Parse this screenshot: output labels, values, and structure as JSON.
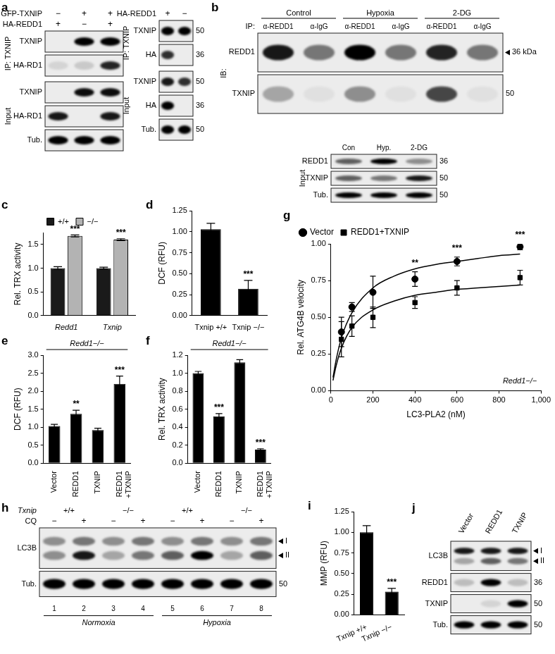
{
  "chart_data": [
    {
      "panel": "c",
      "type": "bar",
      "y_label": "Rel. TRX activity",
      "categories": [
        "Redd1",
        "Txnip"
      ],
      "ylim": [
        0,
        1.75
      ],
      "yticks": [
        {
          "value": 0,
          "label": "0.0"
        },
        0.5,
        {
          "value": 1,
          "label": "1.0"
        },
        1.5
      ],
      "grid": false,
      "legend": "top",
      "series": [
        {
          "name": "+/+",
          "color": "#1a1a1a",
          "values": [
            1.0,
            1.0
          ],
          "errors": [
            0.03,
            0.02
          ]
        },
        {
          "name": "−/−",
          "color": "#b3b3b3",
          "values": [
            1.68,
            1.6
          ],
          "errors": [
            0.02,
            0.02
          ],
          "stars": [
            "***",
            "***"
          ]
        }
      ]
    },
    {
      "panel": "d",
      "type": "bar",
      "y_label": "DCF (RFU)",
      "categories": [
        "Txnip +/+",
        "Txnip −/−"
      ],
      "values": [
        1.03,
        0.32
      ],
      "errors": [
        0.07,
        0.1
      ],
      "stars": [
        null,
        "***"
      ],
      "color": "#000000",
      "ylim": [
        0,
        1.25
      ],
      "yticks": [
        {
          "value": 0,
          "label": "0.00"
        },
        0.25,
        {
          "value": 0.5,
          "label": "0.50"
        },
        0.75,
        {
          "value": 1,
          "label": "1.00"
        },
        1.25
      ],
      "grid": false
    },
    {
      "panel": "g",
      "type": "scatter",
      "x_label": "LC3-PLA2 (nM)",
      "y_label": "Rel. ATG4B velocity",
      "x": [
        50,
        100,
        200,
        400,
        600,
        900
      ],
      "xlim": [
        0,
        1000
      ],
      "xticks": [
        0,
        200,
        400,
        600,
        800,
        {
          "value": 1000,
          "label": "1,000"
        }
      ],
      "ylim": [
        0,
        1.0
      ],
      "yticks": [
        {
          "value": 0,
          "label": "0.00"
        },
        0.25,
        {
          "value": 0.5,
          "label": "0.50"
        },
        0.75,
        {
          "value": 1,
          "label": "1.00"
        }
      ],
      "grid": false,
      "legend": "top-left",
      "note": "Redd1−/−",
      "series": [
        {
          "name": "Vector",
          "color": "#000000",
          "marker": "circle",
          "values": [
            0.4,
            0.57,
            0.67,
            0.76,
            0.88,
            0.98
          ],
          "errors": [
            0.1,
            0.03,
            0.11,
            0.05,
            0.03,
            0.02
          ],
          "stars": [
            null,
            null,
            null,
            "**",
            "***",
            "***"
          ],
          "fit": {
            "x": [
              10,
              25,
              50,
              100,
              200,
              300,
              400,
              500,
              600,
              700,
              800,
              900
            ],
            "values": [
              0.09,
              0.21,
              0.36,
              0.53,
              0.7,
              0.78,
              0.83,
              0.86,
              0.88,
              0.9,
              0.92,
              0.93
            ]
          }
        },
        {
          "name": "REDD1+TXNIP",
          "color": "#000000",
          "marker": "square",
          "values": [
            0.35,
            0.44,
            0.5,
            0.6,
            0.7,
            0.77
          ],
          "errors": [
            0.12,
            0.07,
            0.07,
            0.04,
            0.05,
            0.05
          ],
          "fit": {
            "x": [
              10,
              25,
              50,
              100,
              200,
              300,
              400,
              500,
              600,
              700,
              800,
              900
            ],
            "values": [
              0.07,
              0.17,
              0.29,
              0.43,
              0.55,
              0.61,
              0.65,
              0.67,
              0.69,
              0.7,
              0.71,
              0.72
            ]
          }
        }
      ]
    },
    {
      "panel": "e",
      "type": "bar",
      "y_label": "DCF (RFU)",
      "note": "Redd1−/−",
      "categories": [
        "Vector",
        "REDD1",
        "TXNIP",
        [
          "REDD1",
          "+TXNIP"
        ]
      ],
      "values": [
        1.03,
        1.37,
        0.92,
        2.2
      ],
      "errors": [
        0.05,
        0.1,
        0.05,
        0.22
      ],
      "stars": [
        null,
        "**",
        null,
        "***"
      ],
      "color": "#000000",
      "ylim": [
        0,
        3.0
      ],
      "yticks": [
        {
          "value": 0,
          "label": "0.0"
        },
        0.5,
        {
          "value": 1,
          "label": "1.0"
        },
        1.5,
        {
          "value": 2,
          "label": "2.0"
        },
        2.5,
        {
          "value": 3,
          "label": "3.0"
        }
      ],
      "grid": false
    },
    {
      "panel": "f",
      "type": "bar",
      "y_label": "Rel. TRX activity",
      "note": "Redd1−/−",
      "categories": [
        "Vector",
        "REDD1",
        "TXNIP",
        [
          "REDD1",
          "+TXNIP"
        ]
      ],
      "values": [
        1.0,
        0.52,
        1.12,
        0.15
      ],
      "errors": [
        0.02,
        0.03,
        0.03,
        0.01
      ],
      "stars": [
        null,
        "***",
        null,
        "***"
      ],
      "color": "#000000",
      "ylim": [
        0,
        1.2
      ],
      "yticks": [
        {
          "value": 0,
          "label": "0.0"
        },
        0.2,
        0.4,
        0.6,
        0.8,
        {
          "value": 1,
          "label": "1.0"
        },
        1.2
      ],
      "grid": false
    },
    {
      "panel": "i",
      "type": "bar",
      "y_label": "MMP (RFU)",
      "categories": [
        "Txnip +/+",
        "Txnip −/−"
      ],
      "values": [
        1.0,
        0.28
      ],
      "errors": [
        0.08,
        0.04
      ],
      "stars": [
        null,
        "***"
      ],
      "color": "#000000",
      "ylim": [
        0,
        1.25
      ],
      "yticks": [
        {
          "value": 0,
          "label": "0.00"
        },
        0.25,
        {
          "value": 0.5,
          "label": "0.50"
        },
        0.75,
        {
          "value": 1,
          "label": "1.00"
        },
        1.25
      ],
      "grid": false
    }
  ],
  "blots": [
    {
      "panel": "a",
      "headers": [
        {
          "label": "GFP-TXNIP",
          "values": [
            "−",
            "+",
            "+"
          ]
        },
        {
          "label": "HA-REDD1",
          "values": [
            "+",
            "−",
            "+"
          ]
        }
      ],
      "blocks": [
        {
          "group": "IP: TXNIP",
          "rows": [
            {
              "label": "TXNIP",
              "bands": [
                0,
                1,
                1
              ]
            },
            {
              "label": "HA-RD1",
              "bands": [
                0.1,
                0.15,
                0.85
              ]
            }
          ]
        },
        {
          "group": "Input",
          "rows": [
            {
              "label": "TXNIP",
              "bands": [
                0,
                0.95,
                0.95
              ]
            },
            {
              "label": "HA-RD1",
              "bands": [
                0.9,
                0,
                0.9
              ]
            },
            {
              "label": "Tub.",
              "bands": [
                1,
                1,
                1
              ]
            }
          ]
        }
      ]
    },
    {
      "headers": [
        {
          "label": "HA-REDD1",
          "values": [
            "+",
            "−"
          ]
        }
      ],
      "blocks": [
        {
          "group": "IP: TXNIP",
          "rows": [
            {
              "label": "TXNIP",
              "bands": [
                1,
                1
              ],
              "mw": 50
            },
            {
              "label": "HA",
              "bands": [
                0.8,
                0
              ],
              "mw": 36
            }
          ]
        },
        {
          "group": "Input",
          "rows": [
            {
              "label": "TXNIP",
              "bands": [
                0.9,
                0.8
              ],
              "mw": 50
            },
            {
              "label": "HA",
              "bands": [
                1,
                0
              ],
              "mw": 36
            },
            {
              "label": "Tub.",
              "bands": [
                1,
                1
              ],
              "mw": 50
            }
          ]
        }
      ]
    },
    {
      "panel": "b",
      "group_headers": [
        {
          "groups": [
            "Control",
            "Hypoxia",
            "2-DG"
          ]
        }
      ],
      "lane_labels": {
        "label": "IP:",
        "values": [
          "α-REDD1",
          "α-IgG",
          "α-REDD1",
          "α-IgG",
          "α-REDD1",
          "α-IgG"
        ]
      },
      "blocks": [
        {
          "group": "IB:",
          "rows": [
            {
              "label": "REDD1",
              "bands": [
                0.9,
                0.5,
                1,
                0.5,
                0.85,
                0.5
              ],
              "note": "36 kDa"
            },
            {
              "label": "TXNIP",
              "bands": [
                0.3,
                0.05,
                0.4,
                0.05,
                0.7,
                0.05
              ],
              "mw": 50
            }
          ]
        }
      ]
    },
    {
      "lane_labels": {
        "values": [
          "Con",
          "Hyp.",
          "2-DG"
        ]
      },
      "blocks": [
        {
          "group": "Input",
          "rows": [
            {
              "label": "REDD1",
              "bands": [
                0.6,
                1,
                0.4
              ],
              "mw": 36
            },
            {
              "label": "TXNIP",
              "bands": [
                0.6,
                0.5,
                0.9
              ],
              "mw": 50
            },
            {
              "label": "Tub.",
              "bands": [
                1,
                1,
                1
              ],
              "mw": 50
            }
          ]
        }
      ]
    },
    {
      "panel": "h",
      "group_headers": [
        {
          "label": "Txnip",
          "groups": [
            "+/+",
            "−/−",
            "+/+",
            "−/−"
          ]
        }
      ],
      "headers": [
        {
          "label": "CQ",
          "values": [
            "−",
            "+",
            "−",
            "+",
            "−",
            "+",
            "−",
            "+"
          ]
        }
      ],
      "blocks": [
        {
          "rows": [
            {
              "label": "LC3B",
              "bands": [
                [
                  0.4,
                  0.5,
                  0.4,
                  0.5,
                  0.4,
                  0.5,
                  0.4,
                  0.5
                ],
                [
                  0.4,
                  0.9,
                  0.3,
                  0.5,
                  0.6,
                  1,
                  0.3,
                  0.6
                ]
              ],
              "marks": [
                "I",
                "II"
              ]
            },
            {
              "label": "Tub.",
              "bands": [
                1,
                1,
                1,
                1,
                1,
                1,
                1,
                1
              ],
              "mw": 50
            }
          ]
        }
      ],
      "lane_numbers": [
        1,
        2,
        3,
        4,
        5,
        6,
        7,
        8
      ],
      "conditions": [
        "Normoxia",
        "Hypoxia"
      ]
    },
    {
      "panel": "j",
      "lane_labels": {
        "values": [
          "Vector",
          "REDD1",
          "TXNIP"
        ]
      },
      "blocks": [
        {
          "rows": [
            {
              "label": "LC3B",
              "bands": [
                [
                  0.9,
                  0.9,
                  0.9
                ],
                [
                  0.3,
                  0.6,
                  0.5
                ]
              ],
              "marks": [
                "I",
                "II"
              ]
            },
            {
              "label": "REDD1",
              "bands": [
                0.2,
                1,
                0.2
              ],
              "mw": 36
            },
            {
              "label": "TXNIP",
              "bands": [
                0,
                0.1,
                1
              ],
              "mw": 50
            },
            {
              "label": "Tub.",
              "bands": [
                1,
                1,
                1
              ],
              "mw": 50
            }
          ]
        }
      ]
    }
  ]
}
